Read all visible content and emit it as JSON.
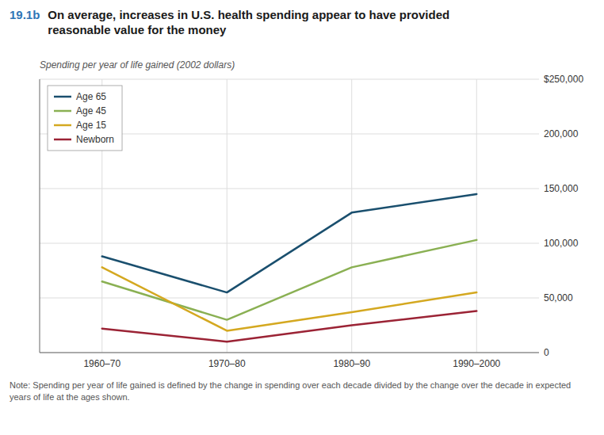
{
  "chart_data": {
    "type": "line",
    "title": [
      "19.1b",
      "On average, increases in U.S. health spending appear to have provided\nreasonable value for the money"
    ],
    "subtitle": "Spending per year of life gained (2002 dollars)",
    "annotations": [
      "Note: Spending per year of life gained is defined by the change in spending over each decade divided by the change over the decade in expected years of life at the ages shown."
    ],
    "categories": [
      "1960–70",
      "1970–80",
      "1980–90",
      "1990–2000"
    ],
    "series": [
      {
        "name": "Age 65",
        "color": "#1a4f6e",
        "values": [
          88000,
          55000,
          128000,
          145000
        ]
      },
      {
        "name": "Age 45",
        "color": "#8ab053",
        "values": [
          65000,
          30000,
          78000,
          103000
        ]
      },
      {
        "name": "Age 15",
        "color": "#d4a820",
        "values": [
          78000,
          20000,
          37000,
          55000
        ]
      },
      {
        "name": "Newborn",
        "color": "#9b2335",
        "values": [
          22000,
          10000,
          25000,
          38000
        ]
      }
    ],
    "ylim": [
      0,
      250000
    ],
    "yticks": [
      0,
      {
        "value": 50000,
        "label": "50,000"
      },
      {
        "value": 100000,
        "label": "100,000"
      },
      {
        "value": 150000,
        "label": "150,000"
      },
      {
        "value": 200000,
        "label": "200,000"
      },
      {
        "value": 250000,
        "label": "$250,000"
      }
    ],
    "grid": true,
    "legend": "upper left"
  }
}
